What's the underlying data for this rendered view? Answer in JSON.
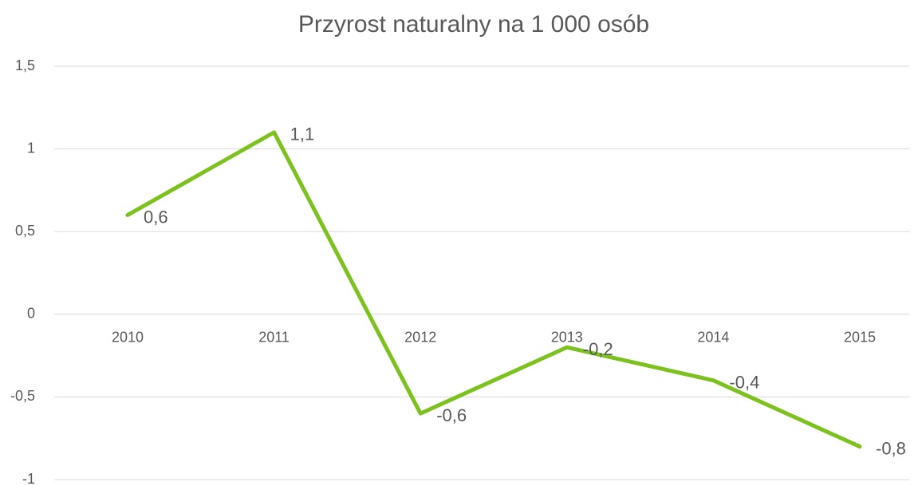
{
  "chart_data": {
    "type": "line",
    "title": "Przyrost naturalny na 1 000 osób",
    "categories": [
      "2010",
      "2011",
      "2012",
      "2013",
      "2014",
      "2015"
    ],
    "series": [
      {
        "name": "Przyrost naturalny",
        "color": "#7cc11d",
        "values": [
          0.6,
          1.1,
          -0.6,
          -0.2,
          -0.4,
          -0.8
        ],
        "value_labels": [
          "0,6",
          "1,1",
          "-0,6",
          "-0,2",
          "-0,4",
          "-0,8"
        ]
      }
    ],
    "ylim": [
      -1,
      1.5
    ],
    "yticks": [
      -1,
      {
        "value": -0.5,
        "label": "-0,5"
      },
      0,
      {
        "value": 0.5,
        "label": "0,5"
      },
      1,
      {
        "value": 1.5,
        "label": "1,5"
      }
    ],
    "grid": true
  }
}
